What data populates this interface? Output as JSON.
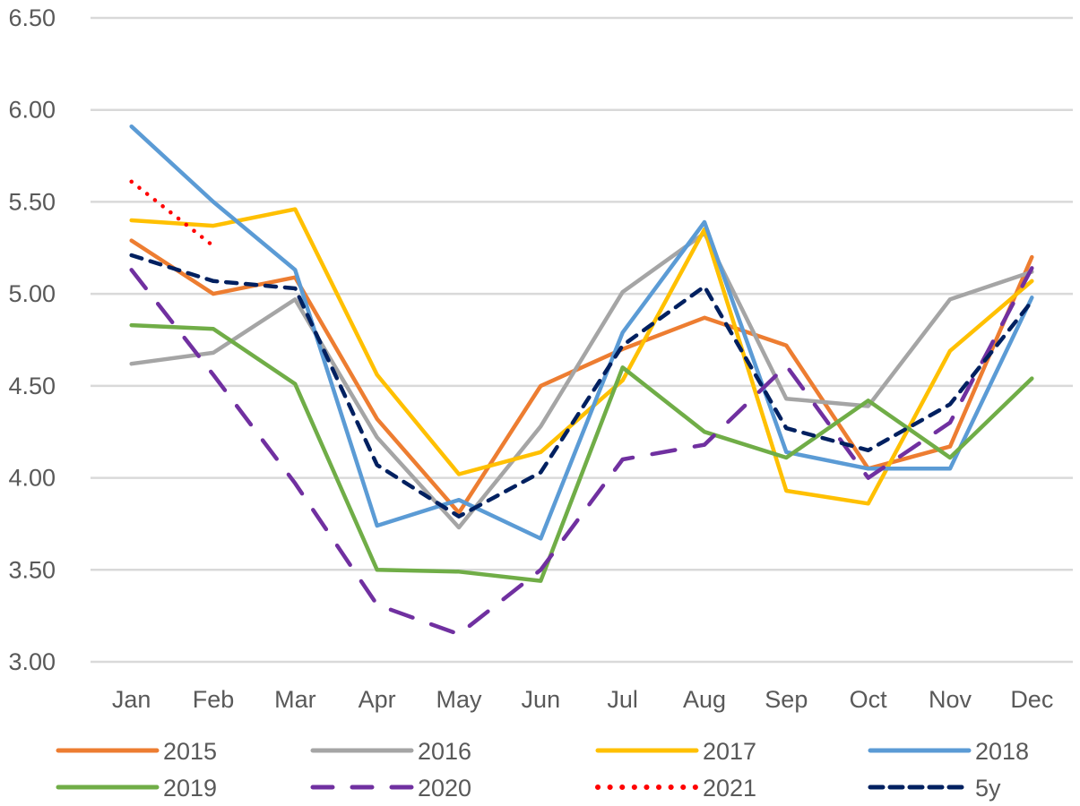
{
  "chart_data": {
    "type": "line",
    "title": "",
    "xlabel": "",
    "ylabel": "",
    "ylim": [
      3.0,
      6.5
    ],
    "yticks": [
      "3.00",
      "3.50",
      "4.00",
      "4.50",
      "5.00",
      "5.50",
      "6.00",
      "6.50"
    ],
    "ytick_values": [
      3.0,
      3.5,
      4.0,
      4.5,
      5.0,
      5.5,
      6.0,
      6.5
    ],
    "grid": true,
    "legend_position": "bottom",
    "categories": [
      "Jan",
      "Feb",
      "Mar",
      "Apr",
      "May",
      "Jun",
      "Jul",
      "Aug",
      "Sep",
      "Oct",
      "Nov",
      "Dec"
    ],
    "series": [
      {
        "name": "2015",
        "color": "#ED7D31",
        "style": "solid",
        "values": [
          5.29,
          5.0,
          5.09,
          4.32,
          3.81,
          4.5,
          4.7,
          4.87,
          4.72,
          4.05,
          4.17,
          5.2
        ]
      },
      {
        "name": "2016",
        "color": "#A5A5A5",
        "style": "solid",
        "values": [
          4.62,
          4.68,
          4.97,
          4.22,
          3.73,
          4.28,
          5.01,
          5.33,
          4.43,
          4.39,
          4.97,
          5.12
        ]
      },
      {
        "name": "2017",
        "color": "#FFC000",
        "style": "solid",
        "values": [
          5.4,
          5.37,
          5.46,
          4.56,
          4.02,
          4.14,
          4.53,
          5.35,
          3.93,
          3.86,
          4.69,
          5.07
        ]
      },
      {
        "name": "2018",
        "color": "#5B9BD5",
        "style": "solid",
        "values": [
          5.91,
          5.5,
          5.13,
          3.74,
          3.88,
          3.67,
          4.79,
          5.39,
          4.14,
          4.05,
          4.05,
          4.98
        ]
      },
      {
        "name": "2019",
        "color": "#70AD47",
        "style": "solid",
        "values": [
          4.83,
          4.81,
          4.51,
          3.5,
          3.49,
          3.44,
          4.6,
          4.25,
          4.11,
          4.42,
          4.11,
          4.54
        ]
      },
      {
        "name": "2020",
        "color": "#7030A0",
        "style": "long-dash",
        "values": [
          5.13,
          4.56,
          3.97,
          3.31,
          3.15,
          3.5,
          4.1,
          4.18,
          4.61,
          4.0,
          4.3,
          5.14
        ]
      },
      {
        "name": "2021",
        "color": "#FF0000",
        "style": "dotted",
        "values": [
          5.61,
          5.26,
          null,
          null,
          null,
          null,
          null,
          null,
          null,
          null,
          null,
          null
        ]
      },
      {
        "name": "5y",
        "color": "#002060",
        "style": "dashed",
        "values": [
          5.21,
          5.07,
          5.03,
          4.07,
          3.79,
          4.03,
          4.72,
          5.04,
          4.27,
          4.15,
          4.4,
          4.96
        ]
      }
    ]
  }
}
